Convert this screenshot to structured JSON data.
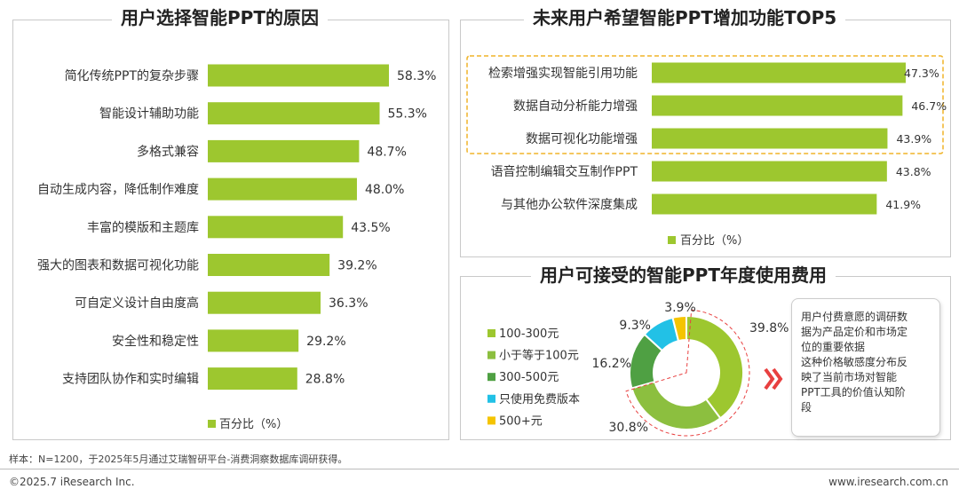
{
  "panel_left": {
    "title": "用户选择智能PPT的原因"
  },
  "panel_top_right": {
    "title": "未来用户希望智能PPT增加功能TOP5"
  },
  "panel_bottom_right": {
    "title": "用户可接受的智能PPT年度使用费用"
  },
  "note": {
    "lines": [
      "用户付费意愿的调研数",
      "据为产品定价和市场定",
      "位的重要依据",
      "这种价格敏感度分布反",
      "映了当前市场对智能",
      "PPT工具的价值认知阶",
      "段"
    ]
  },
  "footer": {
    "source": "样本：N=1200，于2025年5月通过艾瑞智研平台-消费洞察数据库调研获得。",
    "copyright": "©2025.7 iResearch Inc.",
    "website": "www.iresearch.com.cn"
  },
  "colors": {
    "bar": "#9dc72f",
    "highlight_border": "#f0b428",
    "pie": [
      "#9dc72f",
      "#8cbf3f",
      "#4fa043",
      "#22c1e6",
      "#f5c400"
    ],
    "arrow": "#e84040"
  },
  "chart_data": [
    {
      "type": "bar",
      "orientation": "horizontal",
      "categories": [
        "简化传统PPT的复杂步骤",
        "智能设计辅助功能",
        "多格式兼容",
        "自动生成内容，降低制作难度",
        "丰富的模版和主题库",
        "强大的图表和数据可视化功能",
        "可自定义设计自由度高",
        "安全性和稳定性",
        "支持团队协作和实时编辑"
      ],
      "series": [
        {
          "name": "百分比（%）",
          "values": [
            58.3,
            55.3,
            48.7,
            48.0,
            43.5,
            39.2,
            36.3,
            29.2,
            28.8
          ]
        }
      ],
      "value_labels": [
        "58.3%",
        "55.3%",
        "48.7%",
        "48.0%",
        "43.5%",
        "39.2%",
        "36.3%",
        "29.2%",
        "28.8%"
      ],
      "legend": "bottom"
    },
    {
      "type": "bar",
      "orientation": "horizontal",
      "categories": [
        "检索增强实现智能引用功能",
        "数据自动分析能力增强",
        "数据可视化功能增强",
        "语音控制编辑交互制作PPT",
        "与其他办公软件深度集成"
      ],
      "series": [
        {
          "name": "百分比（%）",
          "values": [
            47.3,
            46.7,
            43.9,
            43.8,
            41.9
          ]
        }
      ],
      "value_labels": [
        "47.3%",
        "46.7%",
        "43.9%",
        "43.8%",
        "41.9%"
      ],
      "highlighted_categories": [
        "检索增强实现智能引用功能",
        "数据自动分析能力增强",
        "数据可视化功能增强"
      ],
      "legend": "bottom"
    },
    {
      "type": "pie",
      "donut": true,
      "labels": [
        "100-300元",
        "小于等于100元",
        "300-500元",
        "只使用免费版本",
        "500+元"
      ],
      "values": [
        39.8,
        30.8,
        16.2,
        9.3,
        3.9
      ],
      "value_labels": [
        "39.8%",
        "30.8%",
        "16.2%",
        "9.3%",
        "3.9%"
      ],
      "legend": "left"
    }
  ]
}
